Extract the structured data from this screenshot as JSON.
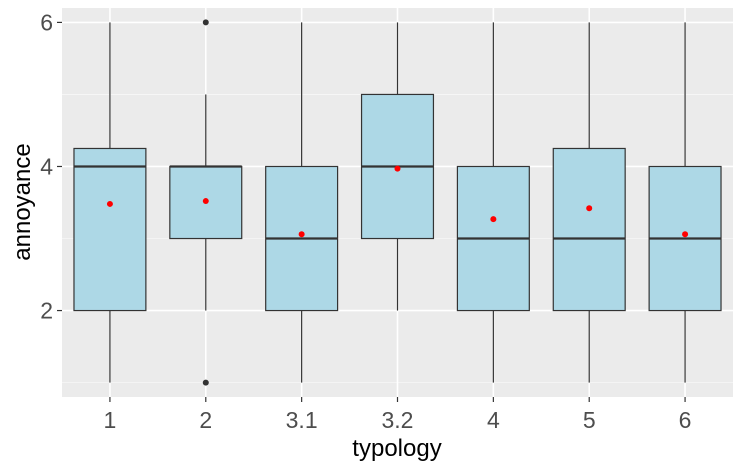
{
  "chart_data": {
    "type": "boxplot",
    "title": "",
    "xlabel": "typology",
    "ylabel": "annoyance",
    "ylim": [
      0.8,
      6.2
    ],
    "yticks": [
      2,
      4,
      6
    ],
    "grid": true,
    "legend": "none",
    "colors": {
      "panel_bg": "#ebebeb",
      "grid_major": "#ffffff",
      "box_fill": "#add8e6",
      "box_line": "#333333",
      "mean_point": "#ff0000",
      "outlier_point": "#333333"
    },
    "categories": [
      "1",
      "2",
      "3.1",
      "3.2",
      "4",
      "5",
      "6"
    ],
    "boxes": [
      {
        "category": "1",
        "min": 1,
        "q1": 2,
        "median": 4,
        "q3": 4.25,
        "max": 6,
        "mean": 3.48,
        "outliers": []
      },
      {
        "category": "2",
        "min": 2,
        "q1": 3,
        "median": 4,
        "q3": 4,
        "max": 5,
        "mean": 3.52,
        "outliers": [
          1,
          6
        ]
      },
      {
        "category": "3.1",
        "min": 1,
        "q1": 2,
        "median": 3,
        "q3": 4,
        "max": 6,
        "mean": 3.06,
        "outliers": []
      },
      {
        "category": "3.2",
        "min": 2,
        "q1": 3,
        "median": 4,
        "q3": 5,
        "max": 6,
        "mean": 3.97,
        "outliers": []
      },
      {
        "category": "4",
        "min": 1,
        "q1": 2,
        "median": 3,
        "q3": 4,
        "max": 6,
        "mean": 3.27,
        "outliers": []
      },
      {
        "category": "5",
        "min": 1,
        "q1": 2,
        "median": 3,
        "q3": 4.25,
        "max": 6,
        "mean": 3.42,
        "outliers": []
      },
      {
        "category": "6",
        "min": 1,
        "q1": 2,
        "median": 3,
        "q3": 4,
        "max": 6,
        "mean": 3.06,
        "outliers": []
      }
    ]
  }
}
